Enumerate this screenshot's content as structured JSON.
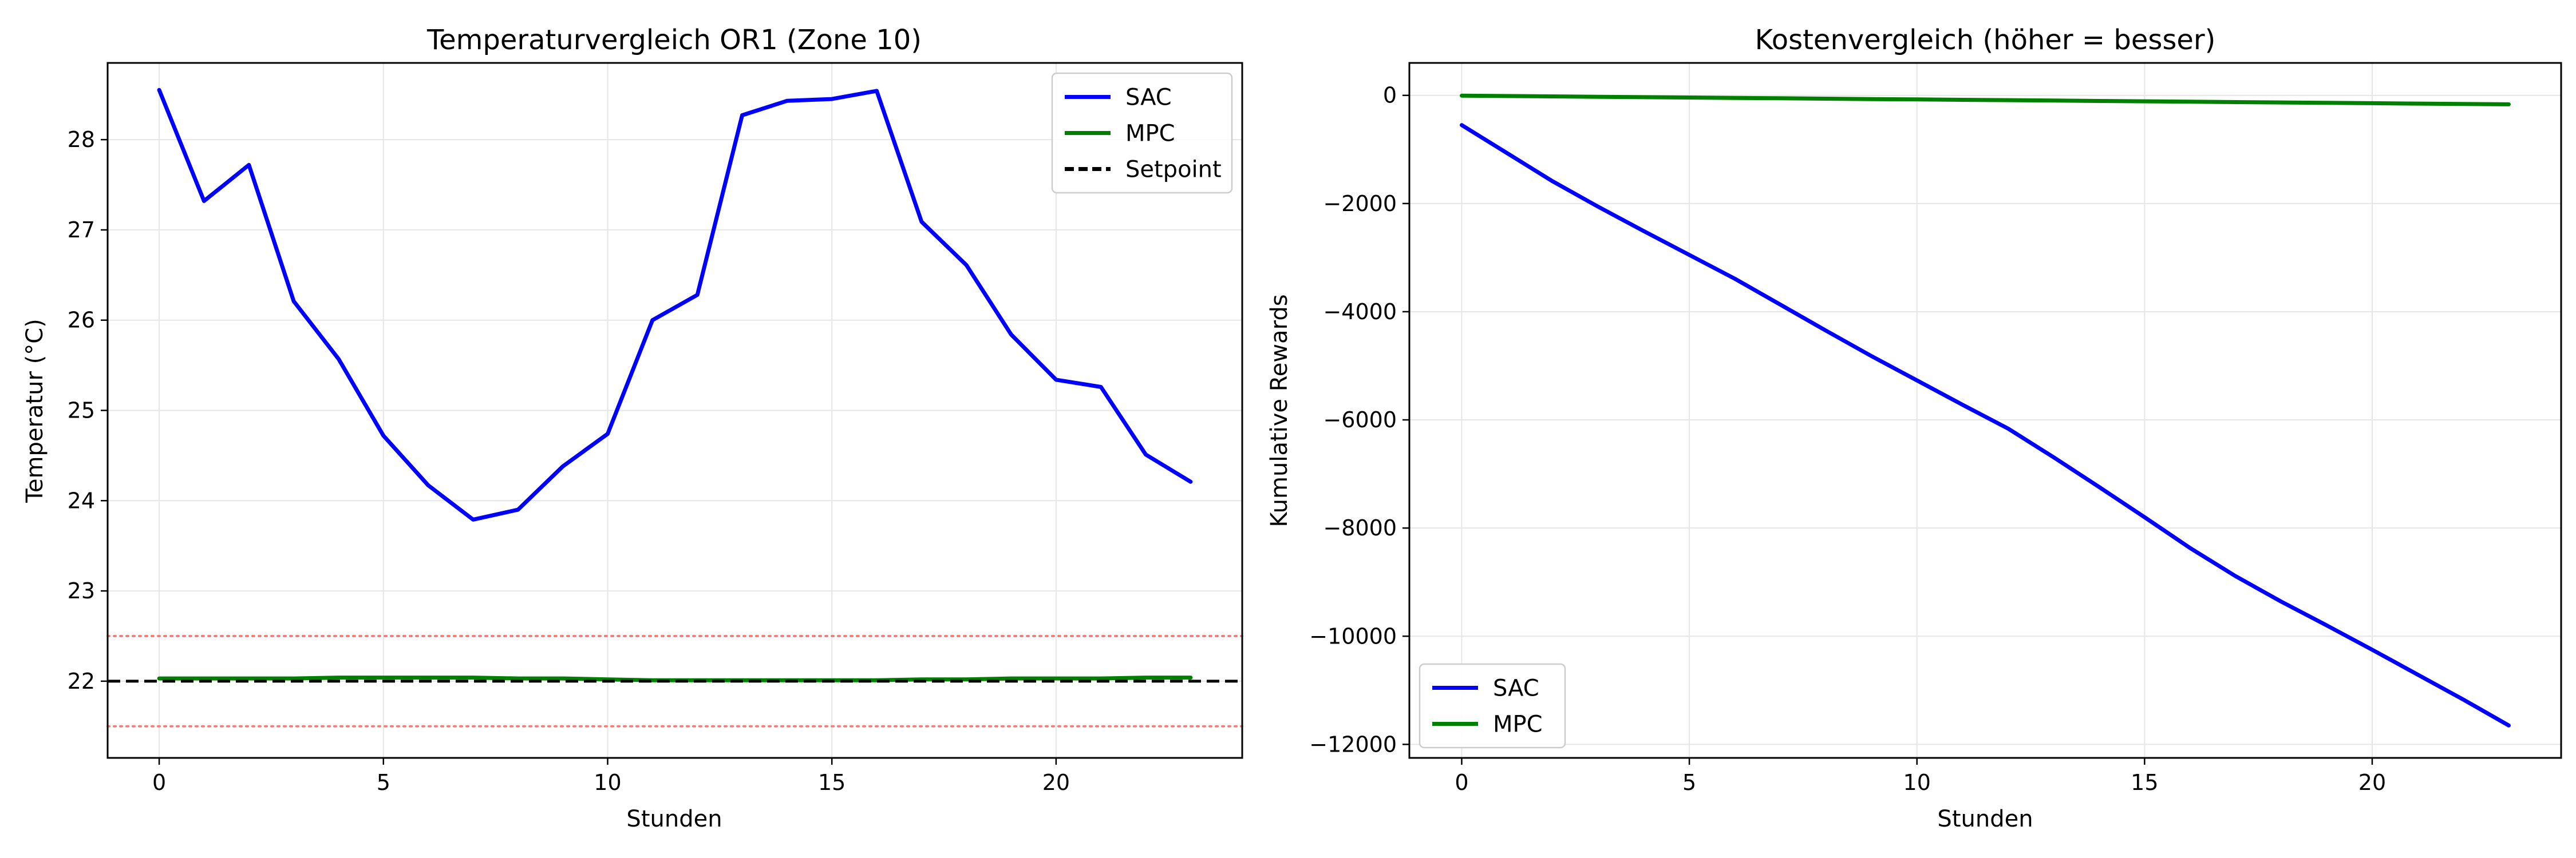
{
  "chart_data": [
    {
      "type": "line",
      "title": "Temperaturvergleich OR1 (Zone 10)",
      "xlabel": "Stunden",
      "ylabel": "Temperatur (°C)",
      "xlim": [
        -1.15,
        24.15
      ],
      "ylim": [
        21.15,
        28.85
      ],
      "xticks": [
        0,
        5,
        10,
        15,
        20
      ],
      "yticks": [
        22,
        23,
        24,
        25,
        26,
        27,
        28
      ],
      "grid": true,
      "legend": "top-right",
      "x": [
        0,
        1,
        2,
        3,
        4,
        5,
        6,
        7,
        8,
        9,
        10,
        11,
        12,
        13,
        14,
        15,
        16,
        17,
        18,
        19,
        20,
        21,
        22,
        23
      ],
      "series": [
        {
          "name": "SAC",
          "color": "#0000ff",
          "style": "solid",
          "values": [
            28.55,
            27.32,
            27.72,
            26.21,
            25.57,
            24.72,
            24.17,
            23.79,
            23.9,
            24.38,
            24.74,
            26.0,
            26.28,
            28.27,
            28.43,
            28.45,
            28.54,
            27.09,
            26.61,
            25.84,
            25.34,
            25.26,
            24.51,
            24.21
          ]
        },
        {
          "name": "MPC",
          "color": "#008000",
          "style": "solid",
          "values": [
            22.03,
            22.03,
            22.03,
            22.03,
            22.04,
            22.04,
            22.04,
            22.04,
            22.03,
            22.03,
            22.02,
            22.01,
            22.01,
            22.01,
            22.01,
            22.01,
            22.01,
            22.02,
            22.02,
            22.03,
            22.03,
            22.03,
            22.04,
            22.04
          ]
        },
        {
          "name": "Setpoint",
          "color": "#000000",
          "style": "dashed",
          "constant": 22.0
        }
      ],
      "reference_lines": [
        {
          "value": 22.5,
          "color": "#f08080",
          "style": "dotted"
        },
        {
          "value": 21.5,
          "color": "#f08080",
          "style": "dotted"
        }
      ]
    },
    {
      "type": "line",
      "title": "Kostenvergleich (höher = besser)",
      "xlabel": "Stunden",
      "ylabel": "Kumulative Rewards",
      "xlim": [
        -1.15,
        24.15
      ],
      "ylim": [
        -12250,
        600
      ],
      "xticks": [
        0,
        5,
        10,
        15,
        20
      ],
      "yticks": [
        0,
        -2000,
        -4000,
        -6000,
        -8000,
        -10000,
        -12000
      ],
      "ytick_labels": [
        "0",
        "−2000",
        "−4000",
        "−6000",
        "−8000",
        "−10000",
        "−12000"
      ],
      "grid": true,
      "legend": "bottom-left",
      "x": [
        0,
        1,
        2,
        3,
        4,
        5,
        6,
        7,
        8,
        9,
        10,
        11,
        12,
        13,
        14,
        15,
        16,
        17,
        18,
        19,
        20,
        21,
        22,
        23
      ],
      "series": [
        {
          "name": "SAC",
          "color": "#0000ff",
          "style": "solid",
          "values": [
            -550,
            -1070,
            -1590,
            -2060,
            -2510,
            -2950,
            -3390,
            -3870,
            -4350,
            -4820,
            -5270,
            -5720,
            -6160,
            -6690,
            -7240,
            -7800,
            -8370,
            -8890,
            -9360,
            -9800,
            -10250,
            -10710,
            -11170,
            -11650
          ]
        },
        {
          "name": "MPC",
          "color": "#008000",
          "style": "solid",
          "values": [
            -5,
            -12,
            -19,
            -26,
            -33,
            -40,
            -47,
            -54,
            -61,
            -68,
            -75,
            -82,
            -89,
            -96,
            -103,
            -110,
            -117,
            -124,
            -131,
            -138,
            -145,
            -152,
            -159,
            -166
          ]
        }
      ]
    }
  ]
}
